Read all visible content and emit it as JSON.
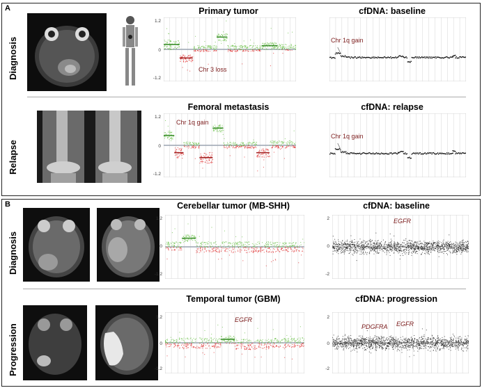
{
  "panelA": {
    "label": "A",
    "rows": [
      {
        "label": "Diagnosis",
        "plot_title": "Primary tumor",
        "cfdna_title": "cfDNA: baseline",
        "plot_annotation": "Chr 3 loss",
        "cfdna_annotation": "Chr 1q gain"
      },
      {
        "label": "Relapse",
        "plot_title": "Femoral metastasis",
        "cfdna_title": "cfDNA: relapse",
        "plot_annotation": "Chr 1q gain",
        "cfdna_annotation": "Chr 1q gain"
      }
    ],
    "ticks": [
      "1.2",
      "0",
      "-1.2"
    ]
  },
  "panelB": {
    "label": "B",
    "rows": [
      {
        "label": "Diagnosis",
        "plot_title": "Cerebellar tumor (MB-SHH)",
        "cfdna_title": "cfDNA: baseline",
        "cfdna_annotation": "EGFR"
      },
      {
        "label": "Progression",
        "plot_title": "Temporal tumor (GBM)",
        "cfdna_title": "cfDNA: progression",
        "plot_annotation": "EGFR",
        "cfdna_annotation_1": "PDGFRA",
        "cfdna_annotation_2": "EGFR"
      }
    ],
    "ticks": [
      "1.2",
      "0",
      "-1.2"
    ],
    "cfdna_ticks": [
      "2",
      "0",
      "-2"
    ]
  },
  "colors": {
    "gain": "#6cc24a",
    "loss": "#e03030",
    "neutral": "#9aa4b0",
    "cfdna": "#111111",
    "annotation": "#7a1a1a"
  }
}
